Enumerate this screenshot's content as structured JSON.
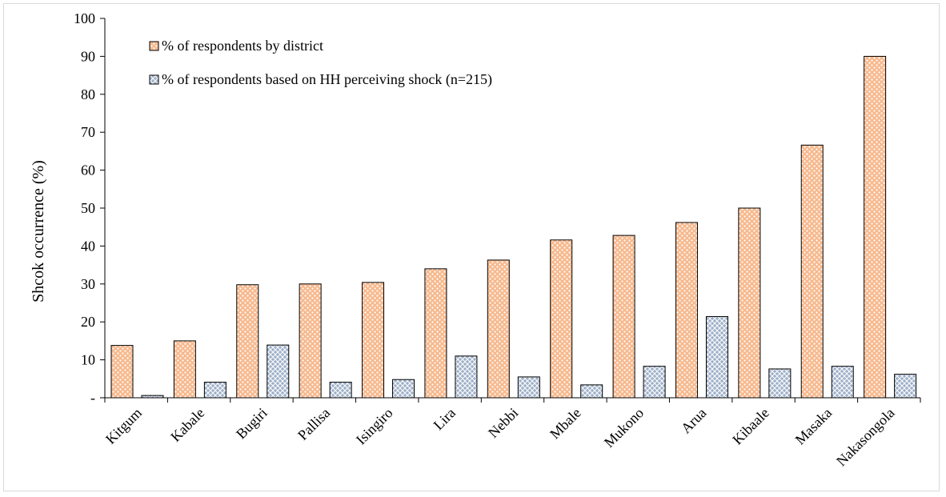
{
  "chart_data": {
    "type": "bar",
    "ylabel": "Shcok occurrence (%)",
    "xlabel": "",
    "ylim": [
      0,
      100
    ],
    "yticks": [
      0,
      10,
      20,
      30,
      40,
      50,
      60,
      70,
      80,
      90,
      100
    ],
    "ytick_labels": [
      "-",
      "10",
      "20",
      "30",
      "40",
      "50",
      "60",
      "70",
      "80",
      "90",
      "100"
    ],
    "grid": false,
    "legend_position": "top-left",
    "categories": [
      "Kitgum",
      "Kabale",
      "Bugiri",
      "Pallisa",
      "Isingiro",
      "Lira",
      "Nebbi",
      "Mbale",
      "Mukono",
      "Arua",
      "Kibaale",
      "Masaka",
      "Nakasongola"
    ],
    "series": [
      {
        "name": "% of respondents by district",
        "color": "#f7b98e",
        "pattern": "dots",
        "values": [
          13.8,
          15.0,
          29.8,
          30.0,
          30.4,
          34.0,
          36.3,
          41.6,
          42.8,
          46.2,
          50.0,
          66.6,
          90.0
        ]
      },
      {
        "name": "% of respondents based on HH perceiving shock (n=215)",
        "color": "#9eb0c9",
        "pattern": "diamond-hatch",
        "values": [
          0.6,
          4.1,
          13.9,
          4.1,
          4.8,
          11.0,
          5.5,
          3.4,
          8.3,
          21.4,
          7.6,
          8.3,
          6.2
        ]
      }
    ]
  }
}
